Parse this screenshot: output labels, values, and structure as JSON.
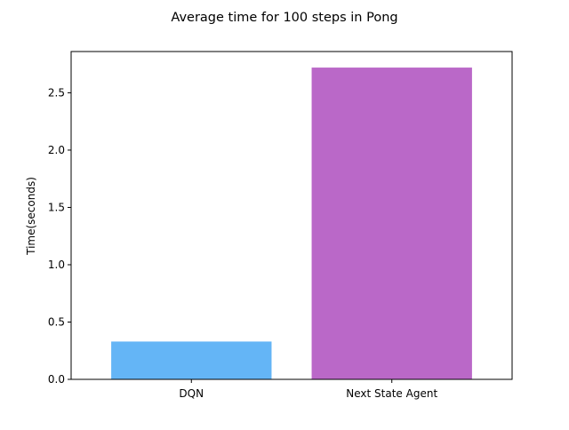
{
  "chart_data": {
    "type": "bar",
    "title": "Average time for 100 steps in Pong",
    "xlabel": "",
    "ylabel": "Time(seconds)",
    "categories": [
      "DQN",
      "Next State Agent"
    ],
    "values": [
      0.33,
      2.72
    ],
    "colors": [
      "#64b5f6",
      "#ba68c8"
    ],
    "ylim": [
      0,
      2.86
    ],
    "yticks": [
      0.0,
      0.5,
      1.0,
      1.5,
      2.0,
      2.5
    ],
    "ytick_labels": [
      "0.0",
      "0.5",
      "1.0",
      "1.5",
      "2.0",
      "2.5"
    ],
    "grid": false,
    "legend": "none"
  }
}
